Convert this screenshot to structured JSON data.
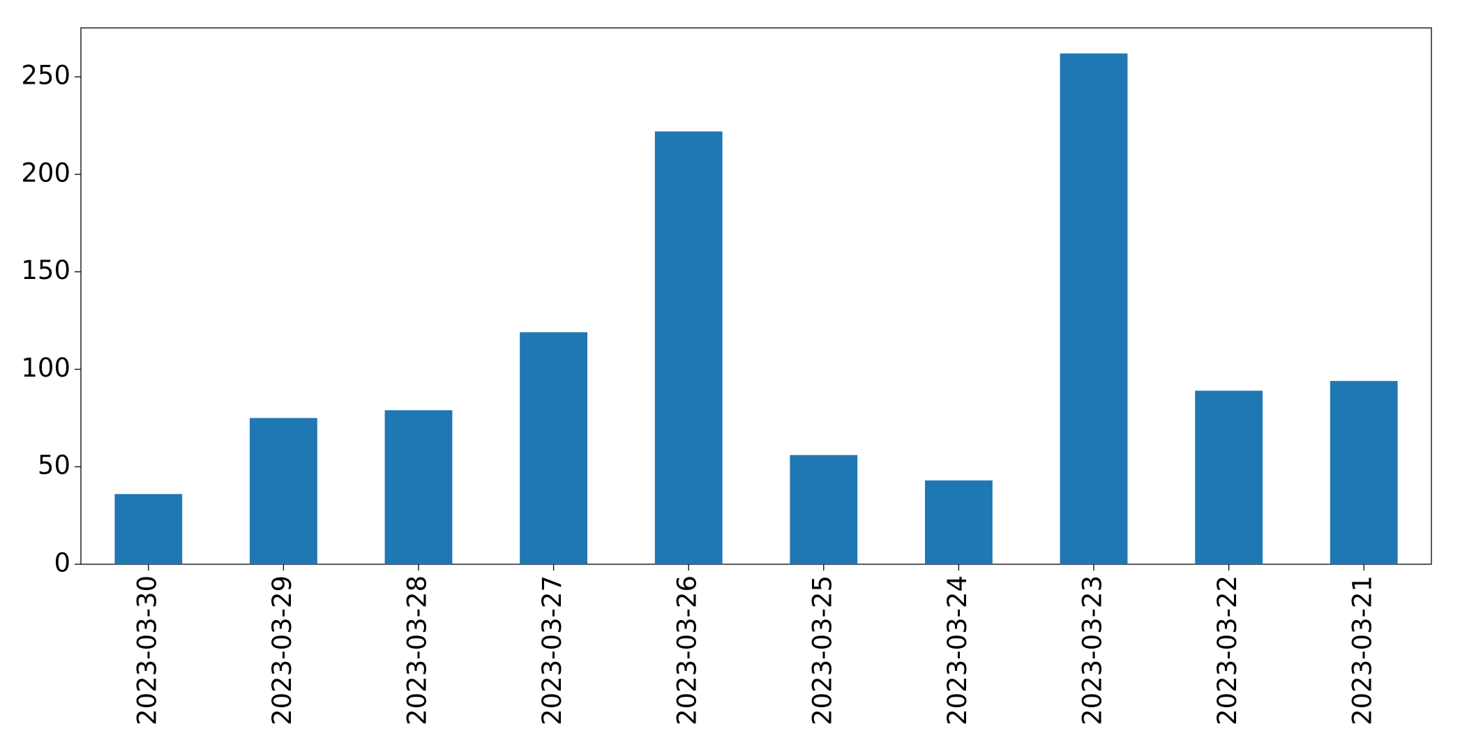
{
  "chart_data": {
    "type": "bar",
    "categories": [
      "2023-03-30",
      "2023-03-29",
      "2023-03-28",
      "2023-03-27",
      "2023-03-26",
      "2023-03-25",
      "2023-03-24",
      "2023-03-23",
      "2023-03-22",
      "2023-03-21"
    ],
    "values": [
      36,
      75,
      79,
      119,
      222,
      56,
      43,
      262,
      89,
      94
    ],
    "color": "#1f77b4",
    "ylim": [
      0,
      275.1
    ],
    "yticks": [
      0,
      50,
      100,
      150,
      200,
      250
    ],
    "grid": false
  }
}
